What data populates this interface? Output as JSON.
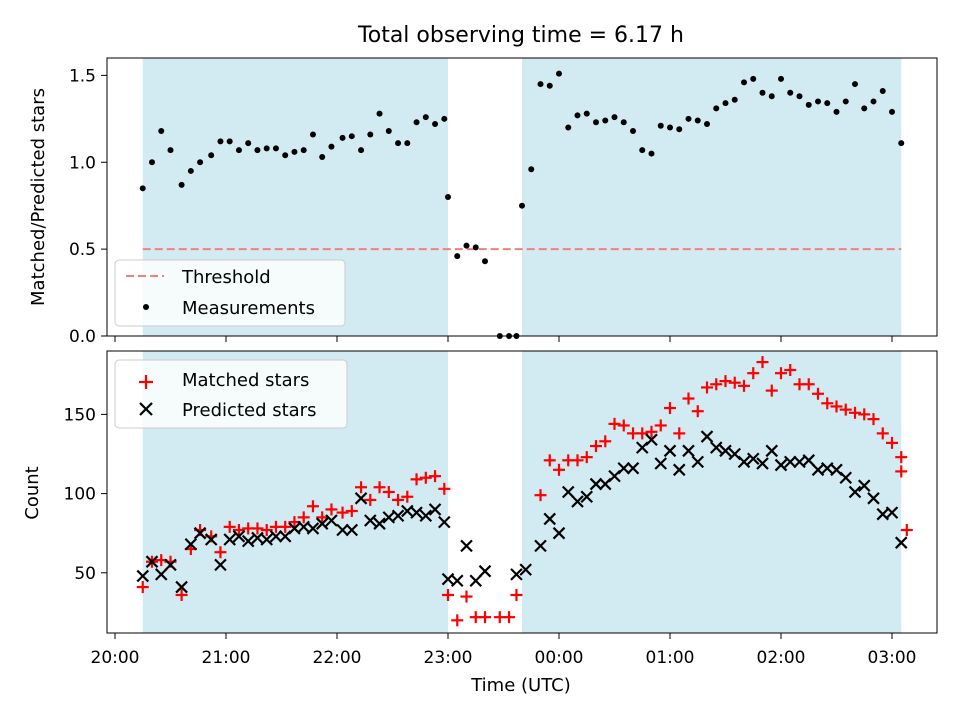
{
  "figure": {
    "title": "Total observing time = 6.17 h"
  },
  "chart_data": [
    {
      "type": "scatter",
      "panel": "top",
      "ylabel": "Matched/Predicted stars",
      "ylim": [
        0,
        1.6
      ],
      "yticks": [
        0.0,
        0.5,
        1.0,
        1.5
      ],
      "ytick_labels": [
        "0.0",
        "0.5",
        "1.0",
        "1.5"
      ],
      "grid": false,
      "legend_position": "lower-left",
      "threshold": {
        "name": "Threshold",
        "value": 0.5,
        "color": "#f08080",
        "style": "dashed"
      },
      "series": [
        {
          "name": "Measurements",
          "color": "#000000",
          "marker": "dot",
          "points": [
            [
              "20:15",
              0.85
            ],
            [
              "20:20",
              1.0
            ],
            [
              "20:25",
              1.18
            ],
            [
              "20:30",
              1.07
            ],
            [
              "20:36",
              0.87
            ],
            [
              "20:41",
              0.95
            ],
            [
              "20:46",
              1.0
            ],
            [
              "20:52",
              1.04
            ],
            [
              "20:57",
              1.12
            ],
            [
              "21:02",
              1.12
            ],
            [
              "21:07",
              1.07
            ],
            [
              "21:12",
              1.11
            ],
            [
              "21:17",
              1.07
            ],
            [
              "21:22",
              1.08
            ],
            [
              "21:27",
              1.08
            ],
            [
              "21:32",
              1.04
            ],
            [
              "21:37",
              1.06
            ],
            [
              "21:42",
              1.07
            ],
            [
              "21:47",
              1.16
            ],
            [
              "21:52",
              1.03
            ],
            [
              "21:57",
              1.09
            ],
            [
              "22:03",
              1.14
            ],
            [
              "22:08",
              1.15
            ],
            [
              "22:13",
              1.07
            ],
            [
              "22:18",
              1.16
            ],
            [
              "22:23",
              1.28
            ],
            [
              "22:28",
              1.18
            ],
            [
              "22:33",
              1.11
            ],
            [
              "22:38",
              1.11
            ],
            [
              "22:43",
              1.23
            ],
            [
              "22:48",
              1.26
            ],
            [
              "22:53",
              1.22
            ],
            [
              "22:58",
              1.25
            ],
            [
              "23:00",
              0.8
            ],
            [
              "23:05",
              0.46
            ],
            [
              "23:10",
              0.52
            ],
            [
              "23:15",
              0.51
            ],
            [
              "23:20",
              0.43
            ],
            [
              "23:28",
              0.0
            ],
            [
              "23:33",
              0.0
            ],
            [
              "23:37",
              0.0
            ],
            [
              "23:40",
              0.75
            ],
            [
              "23:45",
              0.96
            ],
            [
              "23:50",
              1.45
            ],
            [
              "23:55",
              1.44
            ],
            [
              "00:00",
              1.51
            ],
            [
              "00:05",
              1.2
            ],
            [
              "00:10",
              1.27
            ],
            [
              "00:15",
              1.28
            ],
            [
              "00:20",
              1.23
            ],
            [
              "00:25",
              1.24
            ],
            [
              "00:30",
              1.26
            ],
            [
              "00:35",
              1.23
            ],
            [
              "00:40",
              1.18
            ],
            [
              "00:45",
              1.07
            ],
            [
              "00:50",
              1.05
            ],
            [
              "00:55",
              1.21
            ],
            [
              "01:00",
              1.2
            ],
            [
              "01:05",
              1.19
            ],
            [
              "01:10",
              1.25
            ],
            [
              "01:15",
              1.24
            ],
            [
              "01:20",
              1.22
            ],
            [
              "01:25",
              1.31
            ],
            [
              "01:30",
              1.34
            ],
            [
              "01:35",
              1.36
            ],
            [
              "01:40",
              1.46
            ],
            [
              "01:45",
              1.48
            ],
            [
              "01:50",
              1.4
            ],
            [
              "01:55",
              1.38
            ],
            [
              "02:00",
              1.48
            ],
            [
              "02:05",
              1.4
            ],
            [
              "02:10",
              1.38
            ],
            [
              "02:15",
              1.33
            ],
            [
              "02:20",
              1.35
            ],
            [
              "02:25",
              1.34
            ],
            [
              "02:30",
              1.29
            ],
            [
              "02:35",
              1.35
            ],
            [
              "02:40",
              1.45
            ],
            [
              "02:45",
              1.31
            ],
            [
              "02:50",
              1.35
            ],
            [
              "02:55",
              1.41
            ],
            [
              "03:00",
              1.29
            ],
            [
              "03:05",
              1.11
            ]
          ]
        }
      ]
    },
    {
      "type": "scatter",
      "panel": "bottom",
      "xlabel": "Time (UTC)",
      "ylabel": "Count",
      "ylim": [
        12,
        190
      ],
      "yticks": [
        50,
        100,
        150
      ],
      "ytick_labels": [
        "50",
        "100",
        "150"
      ],
      "xticks": [
        "20:00",
        "21:00",
        "22:00",
        "23:00",
        "00:00",
        "01:00",
        "02:00",
        "03:00"
      ],
      "grid": false,
      "legend_position": "upper-left",
      "series": [
        {
          "name": "Matched stars",
          "color": "#ff0000",
          "marker": "plus",
          "points": [
            [
              "20:15",
              41
            ],
            [
              "20:20",
              57
            ],
            [
              "20:25",
              58
            ],
            [
              "20:30",
              57
            ],
            [
              "20:36",
              36
            ],
            [
              "20:41",
              65
            ],
            [
              "20:46",
              77
            ],
            [
              "20:52",
              73
            ],
            [
              "20:57",
              63
            ],
            [
              "21:02",
              79
            ],
            [
              "21:07",
              77
            ],
            [
              "21:12",
              78
            ],
            [
              "21:17",
              78
            ],
            [
              "21:22",
              77
            ],
            [
              "21:27",
              79
            ],
            [
              "21:32",
              79
            ],
            [
              "21:37",
              82
            ],
            [
              "21:42",
              85
            ],
            [
              "21:47",
              92
            ],
            [
              "21:52",
              85
            ],
            [
              "21:57",
              90
            ],
            [
              "22:03",
              88
            ],
            [
              "22:08",
              89
            ],
            [
              "22:13",
              104
            ],
            [
              "22:18",
              96
            ],
            [
              "22:23",
              104
            ],
            [
              "22:28",
              101
            ],
            [
              "22:33",
              96
            ],
            [
              "22:38",
              98
            ],
            [
              "22:43",
              109
            ],
            [
              "22:48",
              110
            ],
            [
              "22:53",
              111
            ],
            [
              "22:58",
              103
            ],
            [
              "23:00",
              36
            ],
            [
              "23:05",
              20
            ],
            [
              "23:10",
              35
            ],
            [
              "23:15",
              22
            ],
            [
              "23:20",
              22
            ],
            [
              "23:28",
              22
            ],
            [
              "23:33",
              22
            ],
            [
              "23:37",
              36
            ],
            [
              "23:50",
              99
            ],
            [
              "23:55",
              121
            ],
            [
              "00:00",
              115
            ],
            [
              "00:05",
              121
            ],
            [
              "00:10",
              121
            ],
            [
              "00:15",
              123
            ],
            [
              "00:20",
              130
            ],
            [
              "00:25",
              133
            ],
            [
              "00:30",
              144
            ],
            [
              "00:35",
              143
            ],
            [
              "00:40",
              138
            ],
            [
              "00:45",
              138
            ],
            [
              "00:50",
              139
            ],
            [
              "00:55",
              143
            ],
            [
              "01:00",
              154
            ],
            [
              "01:05",
              138
            ],
            [
              "01:10",
              160
            ],
            [
              "01:15",
              152
            ],
            [
              "01:20",
              167
            ],
            [
              "01:25",
              169
            ],
            [
              "01:30",
              171
            ],
            [
              "01:35",
              170
            ],
            [
              "01:40",
              168
            ],
            [
              "01:45",
              176
            ],
            [
              "01:50",
              183
            ],
            [
              "01:55",
              165
            ],
            [
              "02:00",
              176
            ],
            [
              "02:05",
              178
            ],
            [
              "02:10",
              169
            ],
            [
              "02:15",
              169
            ],
            [
              "02:20",
              163
            ],
            [
              "02:25",
              157
            ],
            [
              "02:30",
              155
            ],
            [
              "02:35",
              153
            ],
            [
              "02:40",
              151
            ],
            [
              "02:45",
              150
            ],
            [
              "02:50",
              147
            ],
            [
              "02:55",
              138
            ],
            [
              "03:00",
              132
            ],
            [
              "03:05",
              123
            ],
            [
              "03:05",
              114
            ],
            [
              "03:08",
              77
            ]
          ]
        },
        {
          "name": "Predicted stars",
          "color": "#000000",
          "marker": "x",
          "points": [
            [
              "20:15",
              48
            ],
            [
              "20:20",
              57
            ],
            [
              "20:25",
              49
            ],
            [
              "20:30",
              55
            ],
            [
              "20:36",
              41
            ],
            [
              "20:41",
              68
            ],
            [
              "20:46",
              75
            ],
            [
              "20:52",
              71
            ],
            [
              "20:57",
              55
            ],
            [
              "21:02",
              71
            ],
            [
              "21:07",
              73
            ],
            [
              "21:12",
              70
            ],
            [
              "21:17",
              72
            ],
            [
              "21:22",
              71
            ],
            [
              "21:27",
              73
            ],
            [
              "21:32",
              73
            ],
            [
              "21:37",
              78
            ],
            [
              "21:42",
              79
            ],
            [
              "21:47",
              78
            ],
            [
              "21:52",
              81
            ],
            [
              "21:57",
              83
            ],
            [
              "22:03",
              77
            ],
            [
              "22:08",
              77
            ],
            [
              "22:13",
              97
            ],
            [
              "22:18",
              83
            ],
            [
              "22:23",
              81
            ],
            [
              "22:28",
              85
            ],
            [
              "22:33",
              86
            ],
            [
              "22:38",
              89
            ],
            [
              "22:43",
              88
            ],
            [
              "22:48",
              86
            ],
            [
              "22:53",
              90
            ],
            [
              "22:58",
              82
            ],
            [
              "23:00",
              46
            ],
            [
              "23:05",
              45
            ],
            [
              "23:10",
              67
            ],
            [
              "23:15",
              45
            ],
            [
              "23:20",
              51
            ],
            [
              "23:37",
              49
            ],
            [
              "23:42",
              52
            ],
            [
              "23:50",
              67
            ],
            [
              "23:55",
              84
            ],
            [
              "00:00",
              75
            ],
            [
              "00:05",
              101
            ],
            [
              "00:10",
              95
            ],
            [
              "00:15",
              98
            ],
            [
              "00:20",
              106
            ],
            [
              "00:25",
              106
            ],
            [
              "00:30",
              111
            ],
            [
              "00:35",
              116
            ],
            [
              "00:40",
              116
            ],
            [
              "00:45",
              129
            ],
            [
              "00:50",
              134
            ],
            [
              "00:55",
              119
            ],
            [
              "01:00",
              127
            ],
            [
              "01:05",
              115
            ],
            [
              "01:10",
              127
            ],
            [
              "01:15",
              120
            ],
            [
              "01:20",
              136
            ],
            [
              "01:25",
              129
            ],
            [
              "01:30",
              127
            ],
            [
              "01:35",
              125
            ],
            [
              "01:40",
              120
            ],
            [
              "01:45",
              122
            ],
            [
              "01:50",
              119
            ],
            [
              "01:55",
              127
            ],
            [
              "02:00",
              118
            ],
            [
              "02:05",
              120
            ],
            [
              "02:10",
              120
            ],
            [
              "02:15",
              121
            ],
            [
              "02:20",
              115
            ],
            [
              "02:25",
              116
            ],
            [
              "02:30",
              115
            ],
            [
              "02:35",
              110
            ],
            [
              "02:40",
              101
            ],
            [
              "02:45",
              105
            ],
            [
              "02:50",
              97
            ],
            [
              "02:55",
              87
            ],
            [
              "03:00",
              88
            ],
            [
              "03:05",
              69
            ]
          ]
        }
      ]
    }
  ],
  "shaded_intervals": {
    "color": "#add8e6",
    "ranges": [
      [
        "20:15",
        "23:00"
      ],
      [
        "23:40",
        "03:05"
      ]
    ]
  }
}
